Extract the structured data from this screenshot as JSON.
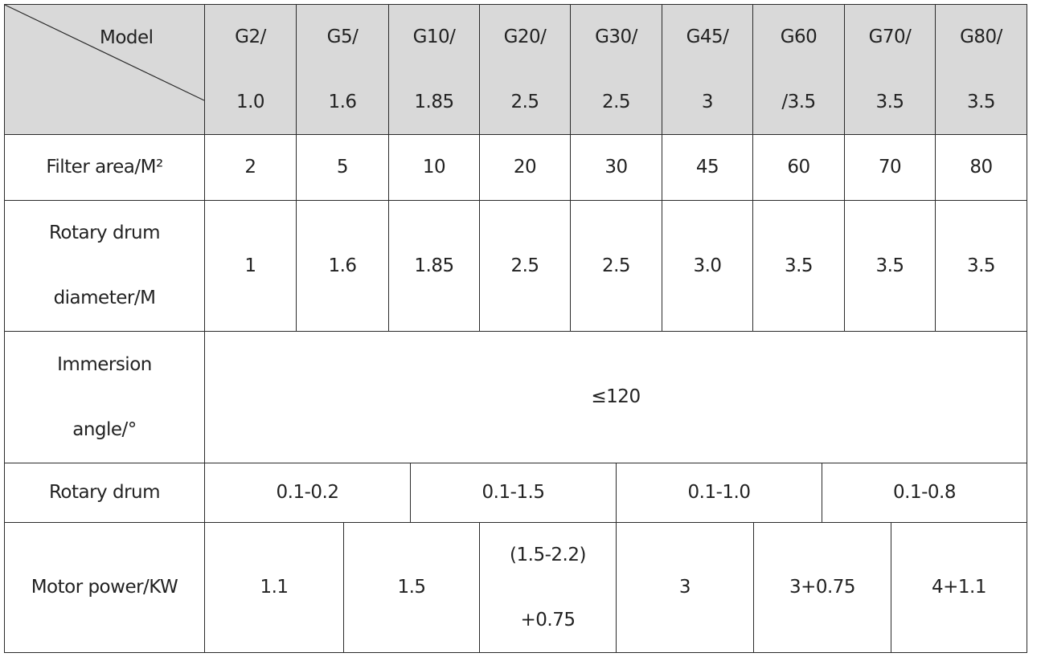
{
  "table": {
    "corner": "Model",
    "header": [
      [
        "G2/",
        "1.0"
      ],
      [
        "G5/",
        "1.6"
      ],
      [
        "G10/",
        "1.85"
      ],
      [
        "G20/",
        "2.5"
      ],
      [
        "G30/",
        "2.5"
      ],
      [
        "G45/",
        "3"
      ],
      [
        "G60",
        "/3.5"
      ],
      [
        "G70/",
        "3.5"
      ],
      [
        "G80/",
        "3.5"
      ]
    ],
    "rows": [
      {
        "label": [
          "Filter area/M²"
        ],
        "cells": [
          [
            "2"
          ],
          [
            "5"
          ],
          [
            "10"
          ],
          [
            "20"
          ],
          [
            "30"
          ],
          [
            "45"
          ],
          [
            "60"
          ],
          [
            "70"
          ],
          [
            "80"
          ]
        ]
      },
      {
        "label": [
          "Rotary drum",
          "diameter/M"
        ],
        "cells": [
          [
            "1"
          ],
          [
            "1.6"
          ],
          [
            "1.85"
          ],
          [
            "2.5"
          ],
          [
            "2.5"
          ],
          [
            "3.0"
          ],
          [
            "3.5"
          ],
          [
            "3.5"
          ],
          [
            "3.5"
          ]
        ]
      },
      {
        "label": [
          "Immersion",
          "angle/°"
        ],
        "cells": [
          [
            "≤120"
          ]
        ]
      },
      {
        "label": [
          "Rotary drum"
        ],
        "cells": [
          [
            "0.1-0.2"
          ],
          [
            "0.1-1.5"
          ],
          [
            "0.1-1.0"
          ],
          [
            "0.1-0.8"
          ]
        ]
      },
      {
        "label": [
          "Motor power/KW"
        ],
        "cells": [
          [
            "1.1"
          ],
          [
            "1.5"
          ],
          [
            "(1.5-2.2)",
            "+0.75"
          ],
          [
            "3"
          ],
          [
            "3+0.75"
          ],
          [
            "4+1.1"
          ]
        ]
      }
    ]
  }
}
